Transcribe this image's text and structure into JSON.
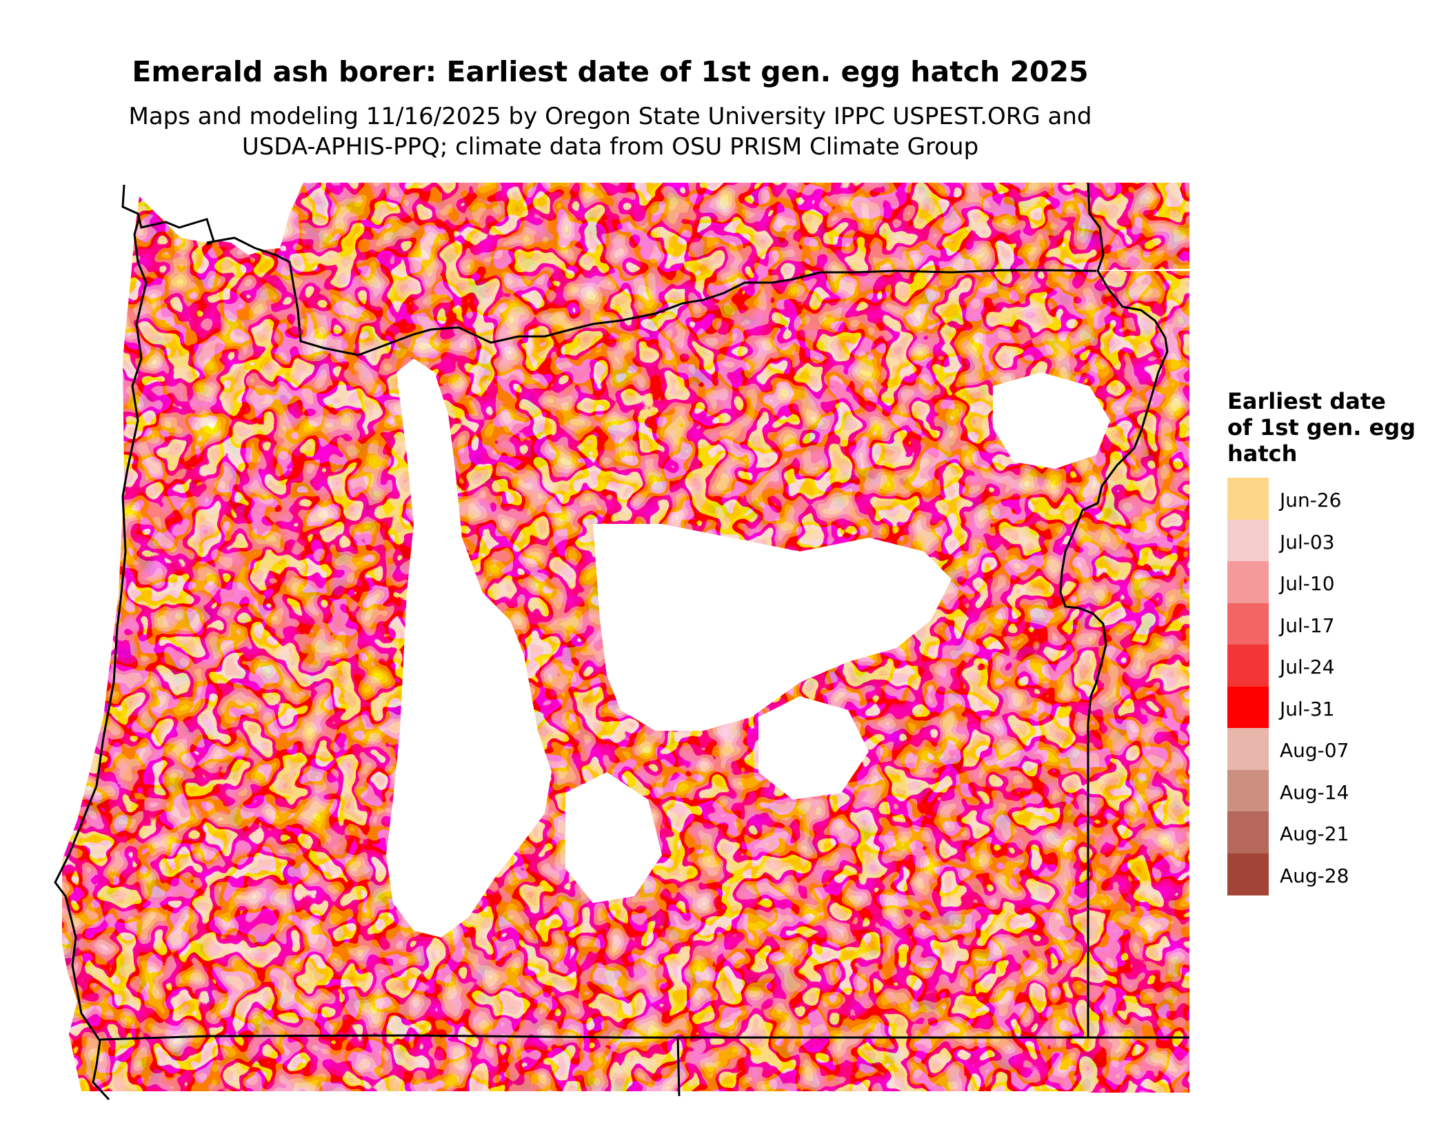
{
  "title": "Emerald ash borer: Earliest date of 1st gen. egg hatch 2025",
  "subtitle_line1": "Maps and modeling 11/16/2025 by Oregon State University IPPC USPEST.ORG and",
  "subtitle_line2": "USDA-APHIS-PPQ; climate data from OSU PRISM Climate Group",
  "legend": {
    "title_lines": [
      "Earliest date",
      "of 1st gen. egg",
      "hatch"
    ],
    "items": [
      {
        "label": "Jun-26",
        "color": "#FDD68A"
      },
      {
        "label": "Jul-03",
        "color": "#F5CCCC"
      },
      {
        "label": "Jul-10",
        "color": "#F49A9A"
      },
      {
        "label": "Jul-17",
        "color": "#F36565"
      },
      {
        "label": "Jul-24",
        "color": "#F43535"
      },
      {
        "label": "Jul-31",
        "color": "#FF0000"
      },
      {
        "label": "Aug-07",
        "color": "#E8B6AB"
      },
      {
        "label": "Aug-14",
        "color": "#CC8F80"
      },
      {
        "label": "Aug-21",
        "color": "#B5685B"
      },
      {
        "label": "Aug-28",
        "color": "#A24536"
      }
    ]
  }
}
